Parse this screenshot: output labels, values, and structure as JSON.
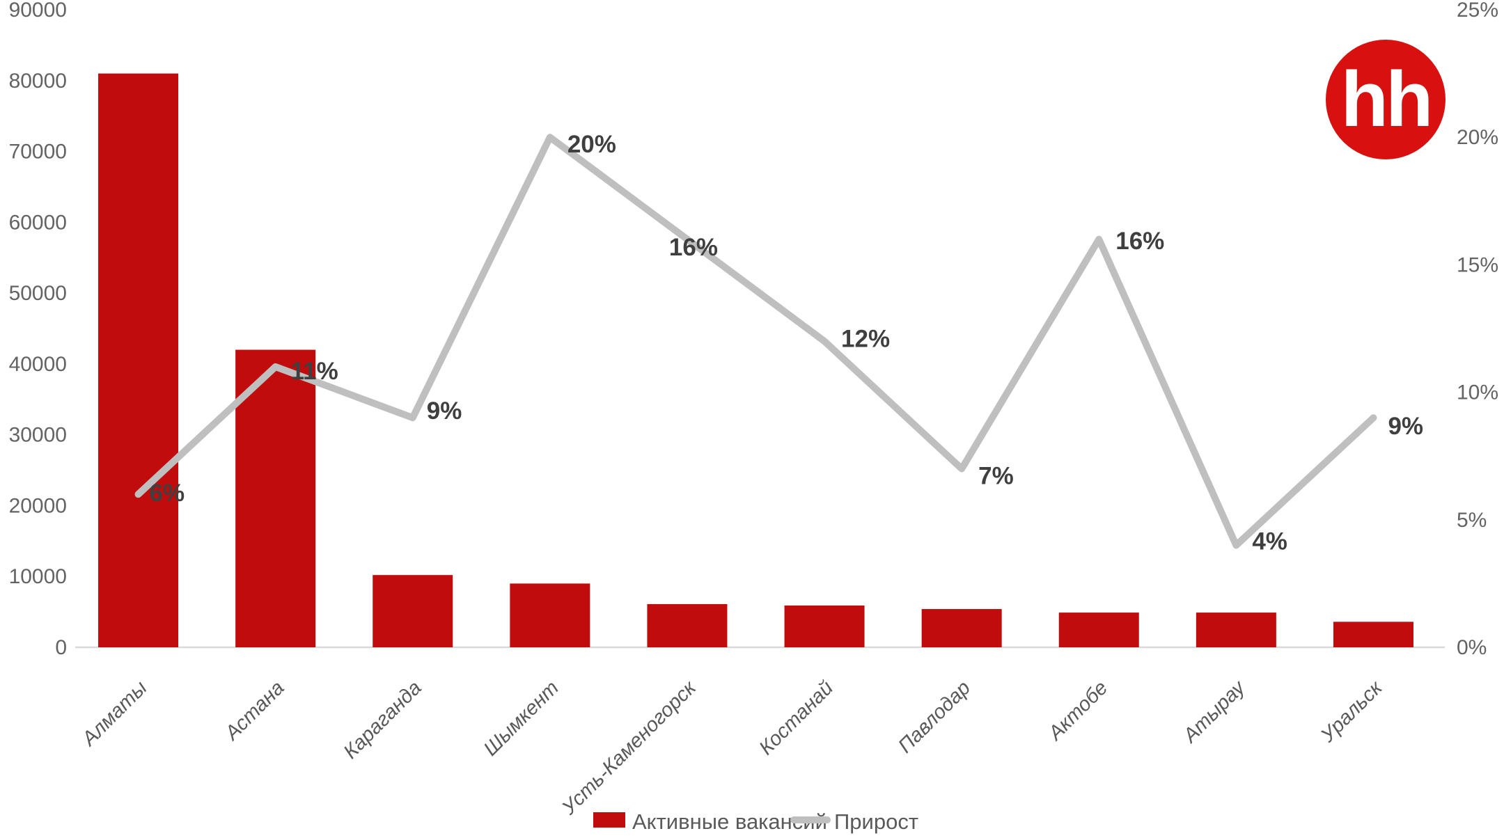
{
  "logo": {
    "text": "hh",
    "bg_color": "#d8100f",
    "text_color": "#ffffff"
  },
  "legend": {
    "items": [
      {
        "label": "Активные вакансий",
        "swatch": "bar",
        "color": "#c00c0c"
      },
      {
        "label": "Прирост",
        "swatch": "line",
        "color": "#bfbfbf"
      }
    ]
  },
  "chart_data": {
    "type": "combo-bar-line",
    "categories": [
      "Алматы",
      "Астана",
      "Караганда",
      "Шымкент",
      "Усть-Каменогорск",
      "Костанай",
      "Павлодар",
      "Актобе",
      "Атырау",
      "Уральск"
    ],
    "series": [
      {
        "name": "Активные вакансий",
        "type": "bar",
        "axis": "left",
        "color": "#c00c0c",
        "values": [
          81000,
          42000,
          10200,
          9000,
          6100,
          5900,
          5400,
          4900,
          4900,
          3600
        ]
      },
      {
        "name": "Прирост",
        "type": "line",
        "axis": "right",
        "color": "#bfbfbf",
        "values": [
          6,
          11,
          9,
          20,
          16,
          12,
          7,
          16,
          4,
          9
        ],
        "point_labels": [
          "6%",
          "11%",
          "9%",
          "20%",
          "16%",
          "12%",
          "7%",
          "16%",
          "4%",
          "9%"
        ]
      }
    ],
    "left_axis": {
      "ticks": [
        "90000",
        "80000",
        "70000",
        "60000",
        "50000",
        "40000",
        "30000",
        "20000",
        "10000",
        "0"
      ],
      "min": 0,
      "max": 90000
    },
    "right_axis": {
      "ticks": [
        "25%",
        "20%",
        "15%",
        "10%",
        "5%",
        "0%"
      ],
      "min": 0,
      "max": 25
    },
    "grid": false,
    "legend_position": "bottom",
    "title": "",
    "colors": {
      "tick_text": "#636363",
      "category_text": "#595959",
      "data_label_text": "#3f3f3f",
      "legend_text": "#595959",
      "axis_line": "#d9d9d9"
    }
  }
}
